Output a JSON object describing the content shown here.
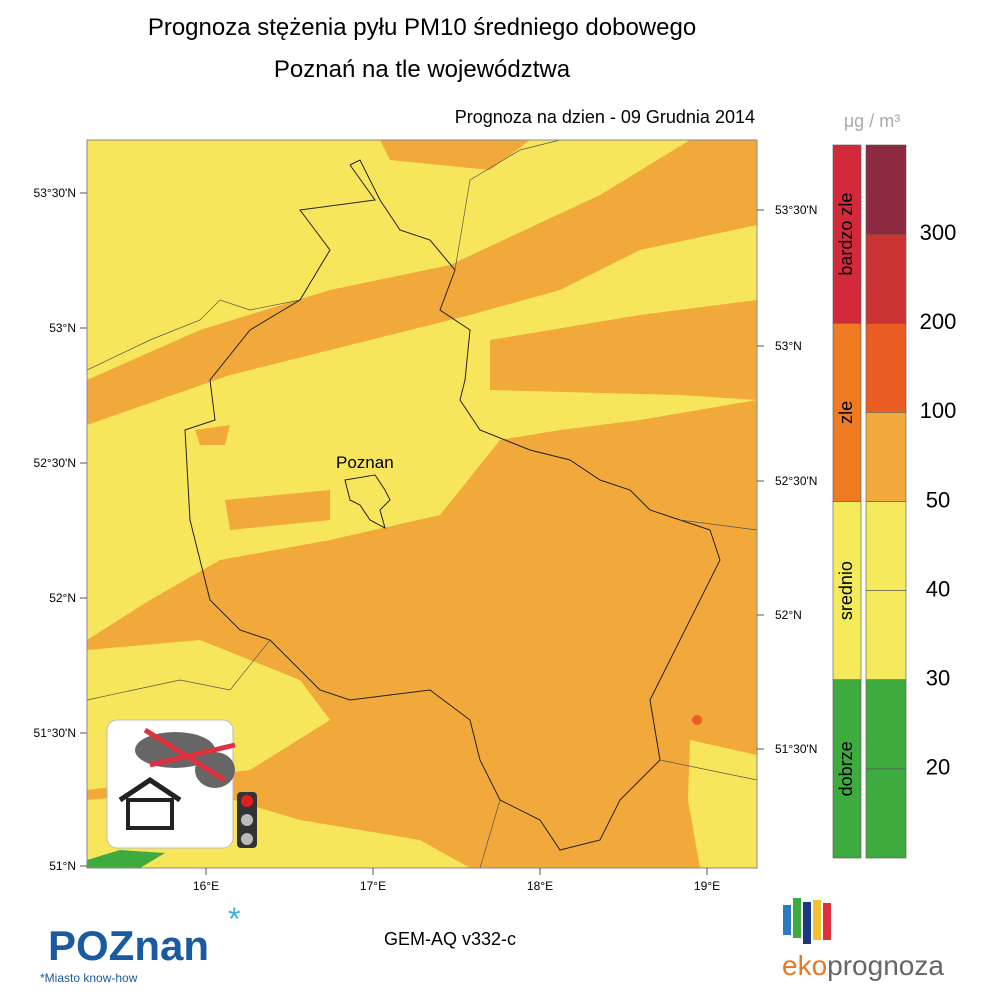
{
  "header": {
    "title": "Prognoza stężenia pyłu PM10 średniego dobowego",
    "subtitle": "Poznań na tle województwa",
    "forecast_date": "Prognoza na dzien -  09 Grudnia 2014"
  },
  "map": {
    "city_label": "Poznan",
    "left_lat_labels": [
      "53°30'N",
      "53°N",
      "52°30'N",
      "52°N",
      "51°30'N",
      "51°N"
    ],
    "right_lat_labels": [
      "53°30'N",
      "53°N",
      "52°30'N",
      "52°N",
      "51°30'N"
    ],
    "lon_labels": [
      "16°E",
      "17°E",
      "18°E",
      "19°E"
    ]
  },
  "legend": {
    "unit": "μg / m³",
    "categories": [
      {
        "label": "bardzo zle",
        "color": "#d22a3a"
      },
      {
        "label": "zle",
        "color": "#ee7a22"
      },
      {
        "label": "srednio",
        "color": "#f5e95c"
      },
      {
        "label": "dobrze",
        "color": "#3dab3d"
      }
    ],
    "scale_colors": [
      "#8b2a40",
      "#cc3333",
      "#ea5d22",
      "#f2a93b",
      "#f5e95c",
      "#f5e95c",
      "#3dab3d",
      "#3dab3d"
    ],
    "scale_labels": [
      300,
      200,
      100,
      50,
      40,
      30,
      20
    ]
  },
  "footer": {
    "model": "GEM-AQ v332-c",
    "logo": "POZnan",
    "tagline": "*Miasto know-how",
    "brand_eko": "eko",
    "brand_rest": "prognoza"
  }
}
